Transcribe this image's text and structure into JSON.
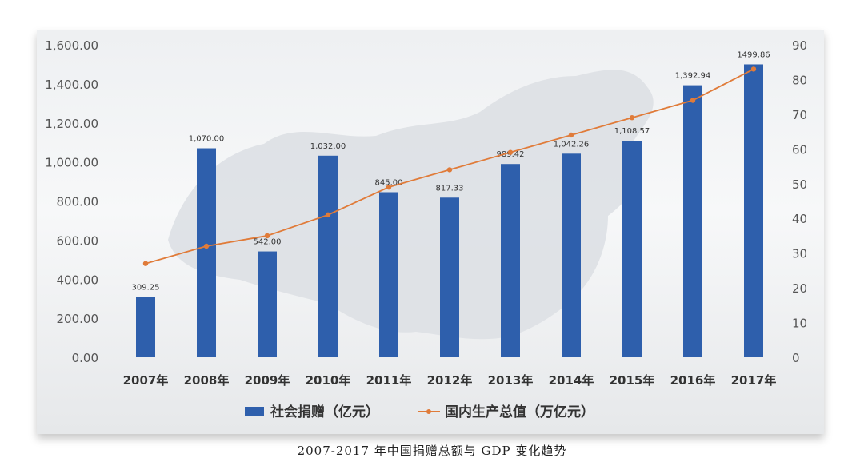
{
  "caption": "2007-2017 年中国捐赠总额与 GDP 变化趋势",
  "chart_data": {
    "type": "bar",
    "categories": [
      "2007年",
      "2008年",
      "2009年",
      "2010年",
      "2011年",
      "2012年",
      "2013年",
      "2014年",
      "2015年",
      "2016年",
      "2017年"
    ],
    "series": [
      {
        "name": "社会捐赠（亿元）",
        "type": "bar",
        "axis": "left",
        "color": "#2e5fac",
        "values": [
          309.25,
          1070.0,
          542.0,
          1032.0,
          845.0,
          817.33,
          989.42,
          1042.26,
          1108.57,
          1392.94,
          1499.86
        ],
        "labels": [
          "309.25",
          "1,070.00",
          "542.00",
          "1,032.00",
          "845.00",
          "817.33",
          "989.42",
          "1,042.26",
          "1,108.57",
          "1,392.94",
          "1499.86"
        ]
      },
      {
        "name": "国内生产总值（万亿元）",
        "type": "line",
        "axis": "right",
        "color": "#e07b39",
        "values": [
          27,
          32,
          35,
          41,
          49,
          54,
          59,
          64,
          69,
          74,
          83
        ]
      }
    ],
    "ylim_left": [
      0,
      1600
    ],
    "ylim_right": [
      0,
      90
    ],
    "yticks_left": [
      "0.00",
      "200.00",
      "400.00",
      "600.00",
      "800.00",
      "1,000.00",
      "1,200.00",
      "1,400.00",
      "1,600.00"
    ],
    "yticks_right": [
      "0",
      "10",
      "20",
      "30",
      "40",
      "50",
      "60",
      "70",
      "80",
      "90"
    ],
    "legend_position": "bottom"
  }
}
